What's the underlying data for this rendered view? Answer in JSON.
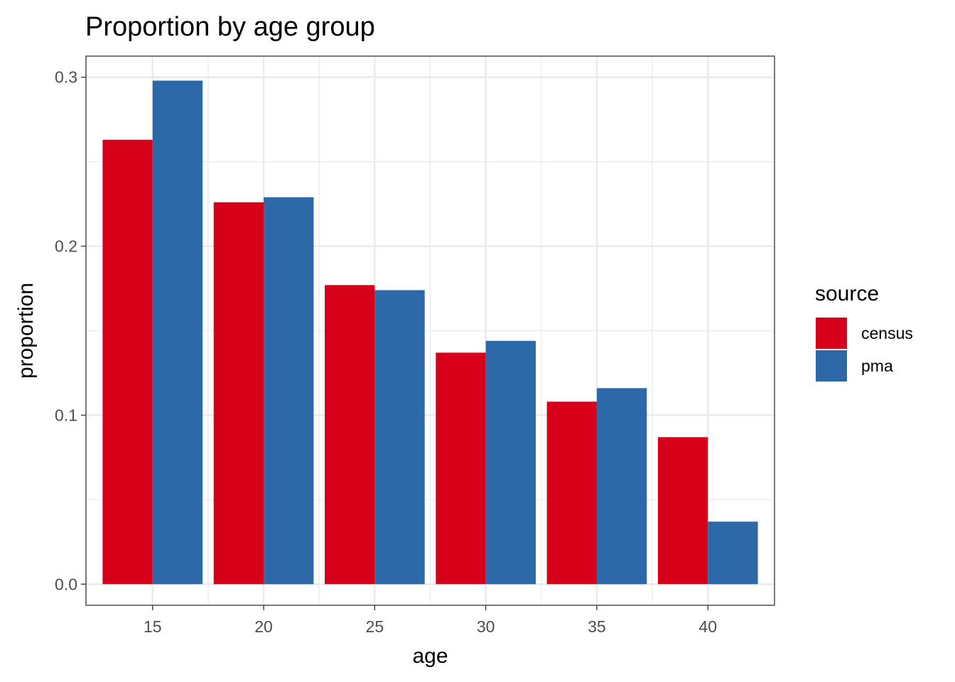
{
  "chart_data": {
    "type": "bar",
    "title": "Proportion by age group",
    "xlabel": "age",
    "ylabel": "proportion",
    "categories": [
      "15",
      "20",
      "25",
      "30",
      "35",
      "40"
    ],
    "x": [
      15,
      20,
      25,
      30,
      35,
      40
    ],
    "series": [
      {
        "name": "census",
        "color": "#d7001b",
        "values": [
          0.263,
          0.226,
          0.177,
          0.137,
          0.108,
          0.087
        ]
      },
      {
        "name": "pma",
        "color": "#2d69a9",
        "values": [
          0.298,
          0.229,
          0.174,
          0.144,
          0.116,
          0.037
        ]
      }
    ],
    "ylim": [
      -0.0125,
      0.3125
    ],
    "xlim": [
      12.0,
      43.0
    ],
    "yticks": [
      0.0,
      0.1,
      0.2,
      0.3
    ],
    "ytick_labels": [
      "0.0",
      "0.1",
      "0.2",
      "0.3"
    ],
    "grid": true,
    "legend": {
      "title": "source",
      "position": "right"
    }
  }
}
